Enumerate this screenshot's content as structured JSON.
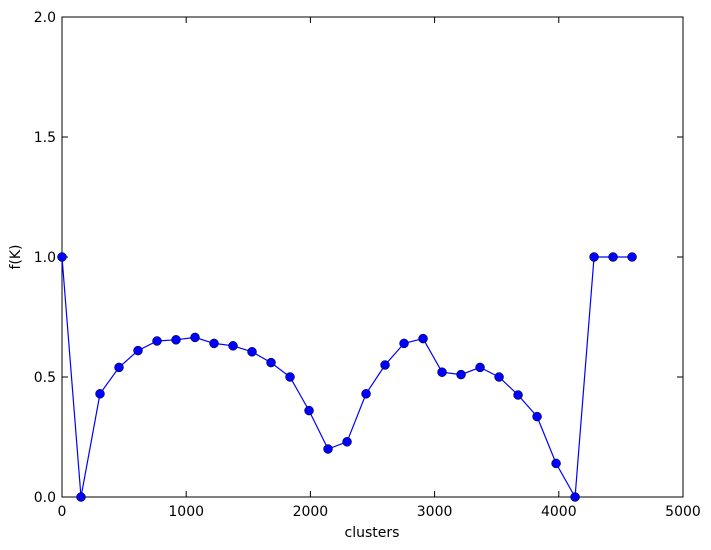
{
  "chart_data": {
    "type": "line",
    "xlabel": "clusters",
    "ylabel": "f(K)",
    "x": [
      0,
      153,
      306,
      459,
      612,
      765,
      918,
      1071,
      1224,
      1377,
      1530,
      1683,
      1836,
      1989,
      2142,
      2295,
      2448,
      2601,
      2754,
      2907,
      3060,
      3213,
      3366,
      3519,
      3672,
      3825,
      3978,
      4131,
      4284,
      4437,
      4590
    ],
    "series": [
      {
        "color": "#0000ff",
        "values": [
          1.0,
          0.0,
          0.43,
          0.54,
          0.61,
          0.65,
          0.655,
          0.665,
          0.64,
          0.63,
          0.605,
          0.56,
          0.5,
          0.36,
          0.2,
          0.23,
          0.43,
          0.55,
          0.64,
          0.66,
          0.52,
          0.51,
          0.54,
          0.5,
          0.425,
          0.335,
          0.14,
          0.0,
          1.0,
          1.0,
          1.0
        ]
      }
    ],
    "xlim": [
      0,
      5000
    ],
    "xticks": [
      0,
      1000,
      2000,
      3000,
      4000,
      5000
    ],
    "ylim": [
      0,
      2.0
    ],
    "yticks": [
      {
        "value": 0,
        "label": "0.0"
      },
      {
        "value": 0.5,
        "label": "0.5"
      },
      {
        "value": 1.0,
        "label": "1.0"
      },
      {
        "value": 1.5,
        "label": "1.5"
      },
      {
        "value": 2.0,
        "label": "2.0"
      }
    ],
    "grid": false
  }
}
